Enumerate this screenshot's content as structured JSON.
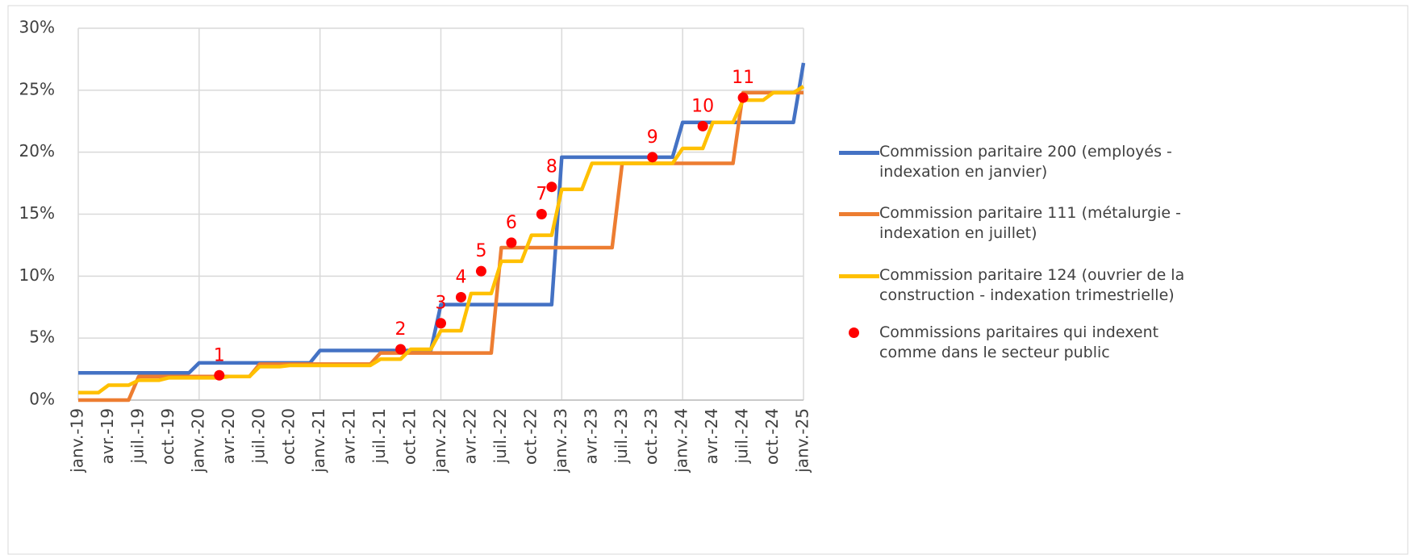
{
  "chart_data": {
    "type": "line",
    "categories": [
      "janv.-19",
      null,
      null,
      "avr.-19",
      null,
      null,
      "juil.-19",
      null,
      null,
      "oct.-19",
      null,
      null,
      "janv.-20",
      null,
      null,
      "avr.-20",
      null,
      null,
      "juil.-20",
      null,
      null,
      "oct.-20",
      null,
      null,
      "janv.-21",
      null,
      null,
      "avr.-21",
      null,
      null,
      "juil.-21",
      null,
      null,
      "oct.-21",
      null,
      null,
      "janv.-22",
      null,
      null,
      "avr.-22",
      null,
      null,
      "juil.-22",
      null,
      null,
      "oct.-22",
      null,
      null,
      "janv.-23",
      null,
      null,
      "avr.-23",
      null,
      null,
      "juil.-23",
      null,
      null,
      "oct.-23",
      null,
      null,
      "janv.-24",
      null,
      null,
      "avr.-24",
      null,
      null,
      "juil.-24",
      null,
      null,
      "oct.-24",
      null,
      null,
      "janv.-25"
    ],
    "ylim": [
      0,
      30
    ],
    "yticks": [
      {
        "value": 0,
        "label": "0%"
      },
      {
        "value": 5,
        "label": "5%"
      },
      {
        "value": 10,
        "label": "10%"
      },
      {
        "value": 15,
        "label": "15%"
      },
      {
        "value": 20,
        "label": "20%"
      },
      {
        "value": 25,
        "label": "25%"
      },
      {
        "value": 30,
        "label": "30%"
      }
    ],
    "grid": true,
    "legend": "right",
    "series": [
      {
        "name": "Commission paritaire 200 (employés - indexation en janvier)",
        "color": "#4472c4",
        "values": [
          2.2,
          2.2,
          2.2,
          2.2,
          2.2,
          2.2,
          2.2,
          2.2,
          2.2,
          2.2,
          2.2,
          2.2,
          3.0,
          3.0,
          3.0,
          3.0,
          3.0,
          3.0,
          3.0,
          3.0,
          3.0,
          3.0,
          3.0,
          3.0,
          4.0,
          4.0,
          4.0,
          4.0,
          4.0,
          4.0,
          4.0,
          4.0,
          4.0,
          4.0,
          4.0,
          4.0,
          7.7,
          7.7,
          7.7,
          7.7,
          7.7,
          7.7,
          7.7,
          7.7,
          7.7,
          7.7,
          7.7,
          7.7,
          19.6,
          19.6,
          19.6,
          19.6,
          19.6,
          19.6,
          19.6,
          19.6,
          19.6,
          19.6,
          19.6,
          19.6,
          22.4,
          22.4,
          22.4,
          22.4,
          22.4,
          22.4,
          22.4,
          22.4,
          22.4,
          22.4,
          22.4,
          22.4,
          27.2
        ]
      },
      {
        "name": "Commission paritaire 111 (métalurgie - indexation en juillet)",
        "color": "#ed7d31",
        "values": [
          0,
          0,
          0,
          0,
          0,
          0,
          1.9,
          1.9,
          1.9,
          1.9,
          1.9,
          1.9,
          1.9,
          1.9,
          1.9,
          1.9,
          1.9,
          1.9,
          2.9,
          2.9,
          2.9,
          2.9,
          2.9,
          2.9,
          2.9,
          2.9,
          2.9,
          2.9,
          2.9,
          2.9,
          3.8,
          3.8,
          3.8,
          3.8,
          3.8,
          3.8,
          3.8,
          3.8,
          3.8,
          3.8,
          3.8,
          3.8,
          12.3,
          12.3,
          12.3,
          12.3,
          12.3,
          12.3,
          12.3,
          12.3,
          12.3,
          12.3,
          12.3,
          12.3,
          19.1,
          19.1,
          19.1,
          19.1,
          19.1,
          19.1,
          19.1,
          19.1,
          19.1,
          19.1,
          19.1,
          19.1,
          24.8,
          24.8,
          24.8,
          24.8,
          24.8,
          24.8,
          24.8
        ]
      },
      {
        "name": "Commission paritaire 124 (ouvrier de la construction - indexation trimestrielle)",
        "color": "#ffc000",
        "values": [
          0.6,
          0.6,
          0.6,
          1.2,
          1.2,
          1.2,
          1.6,
          1.6,
          1.6,
          1.8,
          1.8,
          1.8,
          1.8,
          1.8,
          1.8,
          1.9,
          1.9,
          1.9,
          2.7,
          2.7,
          2.7,
          2.8,
          2.8,
          2.8,
          2.8,
          2.8,
          2.8,
          2.8,
          2.8,
          2.8,
          3.3,
          3.3,
          3.3,
          4.1,
          4.1,
          4.1,
          5.6,
          5.6,
          5.6,
          8.6,
          8.6,
          8.6,
          11.2,
          11.2,
          11.2,
          13.3,
          13.3,
          13.3,
          17.0,
          17.0,
          17.0,
          19.1,
          19.1,
          19.1,
          19.1,
          19.1,
          19.1,
          19.1,
          19.1,
          19.1,
          20.3,
          20.3,
          20.3,
          22.4,
          22.4,
          22.4,
          24.2,
          24.2,
          24.2,
          24.8,
          24.8,
          24.8,
          25.3
        ]
      },
      {
        "name": "Commissions paritaires qui indexent comme dans le secteur public",
        "color": "#ff0000",
        "type": "scatter",
        "values": [
          null,
          null,
          null,
          null,
          null,
          null,
          null,
          null,
          null,
          null,
          null,
          null,
          null,
          null,
          2.0,
          null,
          null,
          null,
          null,
          null,
          null,
          null,
          null,
          null,
          null,
          null,
          null,
          null,
          null,
          null,
          null,
          null,
          4.1,
          null,
          null,
          null,
          6.2,
          null,
          8.3,
          null,
          10.4,
          null,
          null,
          12.7,
          null,
          null,
          15.0,
          17.2,
          null,
          null,
          null,
          null,
          null,
          null,
          null,
          null,
          null,
          19.6,
          null,
          null,
          null,
          null,
          22.1,
          null,
          null,
          null,
          24.4,
          null,
          null,
          null,
          null,
          null,
          null
        ],
        "point_labels": [
          null,
          null,
          null,
          null,
          null,
          null,
          null,
          null,
          null,
          null,
          null,
          null,
          null,
          null,
          "1",
          null,
          null,
          null,
          null,
          null,
          null,
          null,
          null,
          null,
          null,
          null,
          null,
          null,
          null,
          null,
          null,
          null,
          "2",
          null,
          null,
          null,
          "3",
          null,
          "4",
          null,
          "5",
          null,
          null,
          "6",
          null,
          null,
          "7",
          "8",
          null,
          null,
          null,
          null,
          null,
          null,
          null,
          null,
          null,
          "9",
          null,
          null,
          null,
          null,
          "10",
          null,
          null,
          null,
          "11",
          null,
          null,
          null,
          null,
          null,
          null
        ]
      }
    ]
  }
}
